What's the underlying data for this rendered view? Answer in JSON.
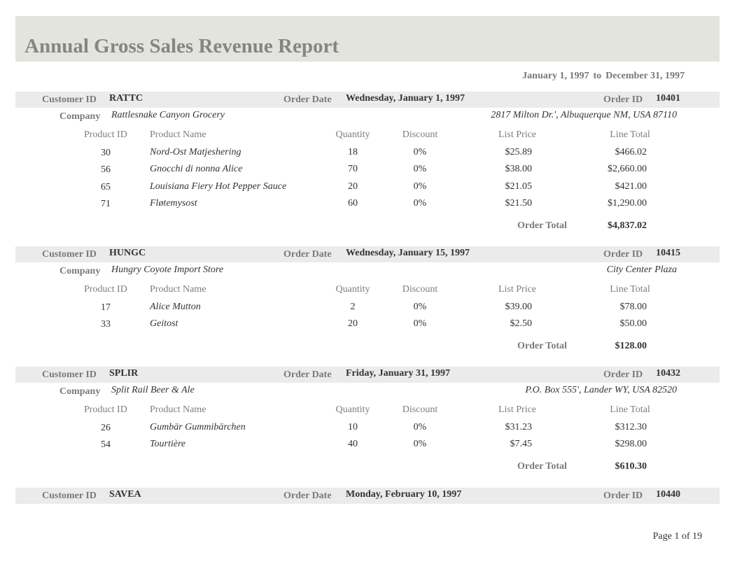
{
  "report": {
    "title": "Annual Gross Sales Revenue Report",
    "range_start": "January 1, 1997",
    "range_to": "to",
    "range_end": "December 31, 1997",
    "page_label": "Page 1 of 19"
  },
  "labels": {
    "customer_id": "Customer ID",
    "order_date": "Order Date",
    "order_id": "Order ID",
    "company": "Company",
    "product_id": "Product ID",
    "product_name": "Product Name",
    "quantity": "Quantity",
    "discount": "Discount",
    "list_price": "List Price",
    "line_total": "Line Total",
    "order_total": "Order Total"
  },
  "orders": [
    {
      "customer_id": "RATTC",
      "order_date": "Wednesday, January 1, 1997",
      "order_id": "10401",
      "company": "Rattlesnake Canyon Grocery",
      "address": "2817 Milton Dr.', Albuquerque NM, USA 87110",
      "lines": [
        {
          "product_id": "30",
          "product_name": "Nord-Ost Matjeshering",
          "quantity": "18",
          "discount": "0%",
          "list_price": "$25.89",
          "line_total": "$466.02"
        },
        {
          "product_id": "56",
          "product_name": "Gnocchi di nonna Alice",
          "quantity": "70",
          "discount": "0%",
          "list_price": "$38.00",
          "line_total": "$2,660.00"
        },
        {
          "product_id": "65",
          "product_name": "Louisiana Fiery Hot Pepper Sauce",
          "quantity": "20",
          "discount": "0%",
          "list_price": "$21.05",
          "line_total": "$421.00"
        },
        {
          "product_id": "71",
          "product_name": "Fløtemysost",
          "quantity": "60",
          "discount": "0%",
          "list_price": "$21.50",
          "line_total": "$1,290.00"
        }
      ],
      "order_total": "$4,837.02"
    },
    {
      "customer_id": "HUNGC",
      "order_date": "Wednesday, January 15, 1997",
      "order_id": "10415",
      "company": "Hungry Coyote Import Store",
      "address": "City Center Plaza",
      "lines": [
        {
          "product_id": "17",
          "product_name": "Alice Mutton",
          "quantity": "2",
          "discount": "0%",
          "list_price": "$39.00",
          "line_total": "$78.00"
        },
        {
          "product_id": "33",
          "product_name": "Geitost",
          "quantity": "20",
          "discount": "0%",
          "list_price": "$2.50",
          "line_total": "$50.00"
        }
      ],
      "order_total": "$128.00"
    },
    {
      "customer_id": "SPLIR",
      "order_date": "Friday, January 31, 1997",
      "order_id": "10432",
      "company": "Split Rail Beer & Ale",
      "address": "P.O. Box 555', Lander WY, USA 82520",
      "lines": [
        {
          "product_id": "26",
          "product_name": "Gumbär Gummibärchen",
          "quantity": "10",
          "discount": "0%",
          "list_price": "$31.23",
          "line_total": "$312.30"
        },
        {
          "product_id": "54",
          "product_name": "Tourtière",
          "quantity": "40",
          "discount": "0%",
          "list_price": "$7.45",
          "line_total": "$298.00"
        }
      ],
      "order_total": "$610.30"
    },
    {
      "customer_id": "SAVEA",
      "order_date": "Monday, February 10, 1997",
      "order_id": "10440"
    }
  ]
}
